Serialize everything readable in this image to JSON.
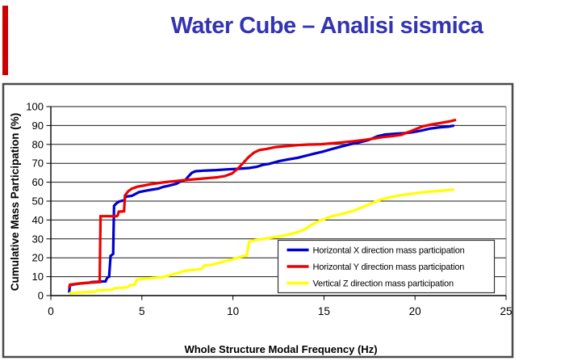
{
  "slide": {
    "title": "Water Cube – Analisi sismica",
    "title_color": "#3333B3",
    "accent_bar_color": "#CC0000"
  },
  "chart_data": {
    "type": "line",
    "title": "",
    "xlabel": "Whole Structure Modal Frequency (Hz)",
    "ylabel": "Cumulative Mass Participation (%)",
    "xlim": [
      0,
      25
    ],
    "ylim": [
      0,
      100
    ],
    "x_ticks": [
      0,
      5,
      10,
      15,
      20,
      25
    ],
    "y_ticks": [
      100,
      90,
      80,
      70,
      60,
      50,
      40,
      30,
      20,
      10,
      0
    ],
    "grid": "horizontal",
    "legend_position": "inside-lower-right",
    "series": [
      {
        "name": "Horizontal X direction mass participation",
        "color": "#0000CC",
        "points": [
          [
            1.0,
            1.5
          ],
          [
            1.05,
            5.5
          ],
          [
            1.5,
            6.3
          ],
          [
            2.1,
            6.8
          ],
          [
            2.25,
            7.2
          ],
          [
            3.0,
            7.5
          ],
          [
            3.1,
            9.5
          ],
          [
            3.2,
            10
          ],
          [
            3.28,
            21
          ],
          [
            3.42,
            22
          ],
          [
            3.47,
            47.5
          ],
          [
            3.6,
            48.8
          ],
          [
            3.75,
            49.8
          ],
          [
            4.05,
            50.5
          ],
          [
            4.1,
            52.3
          ],
          [
            4.45,
            52.8
          ],
          [
            4.85,
            54.8
          ],
          [
            5.15,
            55.4
          ],
          [
            5.5,
            56
          ],
          [
            5.9,
            56.6
          ],
          [
            6.15,
            57.5
          ],
          [
            6.5,
            58.2
          ],
          [
            6.9,
            59.2
          ],
          [
            7.15,
            60.6
          ],
          [
            7.4,
            61.2
          ],
          [
            7.55,
            63
          ],
          [
            7.75,
            65
          ],
          [
            7.95,
            65.8
          ],
          [
            8.4,
            66.1
          ],
          [
            9.1,
            66.4
          ],
          [
            9.7,
            66.8
          ],
          [
            10.3,
            67.1
          ],
          [
            10.9,
            67.5
          ],
          [
            11.3,
            68.1
          ],
          [
            11.65,
            69.2
          ],
          [
            11.95,
            69.6
          ],
          [
            12.25,
            70.4
          ],
          [
            12.55,
            71.2
          ],
          [
            13.0,
            72
          ],
          [
            13.55,
            72.9
          ],
          [
            14.05,
            74.1
          ],
          [
            14.45,
            75.1
          ],
          [
            14.95,
            76.2
          ],
          [
            15.45,
            77.6
          ],
          [
            15.95,
            78.9
          ],
          [
            16.45,
            80.1
          ],
          [
            16.95,
            81.1
          ],
          [
            17.45,
            82.3
          ],
          [
            17.95,
            84.3
          ],
          [
            18.35,
            85.2
          ],
          [
            18.85,
            85.6
          ],
          [
            19.35,
            85.9
          ],
          [
            19.85,
            86.4
          ],
          [
            20.35,
            87.3
          ],
          [
            20.85,
            88.4
          ],
          [
            21.35,
            89
          ],
          [
            21.85,
            89.4
          ],
          [
            22.15,
            90
          ]
        ]
      },
      {
        "name": "Horizontal Y direction mass participation",
        "color": "#EE0000",
        "points": [
          [
            1.0,
            4
          ],
          [
            1.05,
            5.8
          ],
          [
            1.55,
            6.4
          ],
          [
            2.2,
            6.9
          ],
          [
            2.68,
            7.2
          ],
          [
            2.73,
            42
          ],
          [
            3.62,
            42
          ],
          [
            3.68,
            42.6
          ],
          [
            3.73,
            44.4
          ],
          [
            4.02,
            44.6
          ],
          [
            4.07,
            53
          ],
          [
            4.25,
            55.2
          ],
          [
            4.45,
            56.6
          ],
          [
            4.75,
            57.6
          ],
          [
            5.05,
            58.1
          ],
          [
            5.45,
            58.9
          ],
          [
            5.95,
            59.6
          ],
          [
            6.35,
            60.1
          ],
          [
            6.85,
            60.6
          ],
          [
            7.35,
            61.1
          ],
          [
            7.95,
            61.6
          ],
          [
            8.55,
            62.1
          ],
          [
            9.15,
            62.6
          ],
          [
            9.55,
            63.2
          ],
          [
            9.95,
            64.6
          ],
          [
            10.25,
            67
          ],
          [
            10.55,
            70
          ],
          [
            10.85,
            73.2
          ],
          [
            11.15,
            75.6
          ],
          [
            11.45,
            77
          ],
          [
            11.85,
            77.6
          ],
          [
            12.35,
            78.6
          ],
          [
            12.95,
            79.1
          ],
          [
            13.55,
            79.6
          ],
          [
            14.15,
            79.9
          ],
          [
            14.85,
            80.1
          ],
          [
            15.45,
            80.6
          ],
          [
            16.05,
            81.1
          ],
          [
            16.65,
            81.7
          ],
          [
            17.25,
            82.4
          ],
          [
            17.75,
            83.1
          ],
          [
            18.25,
            83.9
          ],
          [
            18.75,
            84.4
          ],
          [
            19.25,
            85.1
          ],
          [
            19.65,
            86.6
          ],
          [
            20.05,
            88.1
          ],
          [
            20.45,
            89.6
          ],
          [
            20.95,
            90.6
          ],
          [
            21.45,
            91.4
          ],
          [
            21.85,
            92.1
          ],
          [
            22.25,
            93
          ]
        ]
      },
      {
        "name": "Vertical Z direction mass participation",
        "color": "#FFFF00",
        "points": [
          [
            1.0,
            1.3
          ],
          [
            1.9,
            1.8
          ],
          [
            2.45,
            2.1
          ],
          [
            2.55,
            2.7
          ],
          [
            3.35,
            3.1
          ],
          [
            3.5,
            3.9
          ],
          [
            4.2,
            4.4
          ],
          [
            4.35,
            5.4
          ],
          [
            4.6,
            5.9
          ],
          [
            4.72,
            8.4
          ],
          [
            5.1,
            8.9
          ],
          [
            5.6,
            9.3
          ],
          [
            6.1,
            9.7
          ],
          [
            6.35,
            10.3
          ],
          [
            6.65,
            11.1
          ],
          [
            7.05,
            12.1
          ],
          [
            7.35,
            13.1
          ],
          [
            7.85,
            13.6
          ],
          [
            8.25,
            14.1
          ],
          [
            8.45,
            15.9
          ],
          [
            8.9,
            16.4
          ],
          [
            9.25,
            17.4
          ],
          [
            9.65,
            18.4
          ],
          [
            10.05,
            19.4
          ],
          [
            10.35,
            20.4
          ],
          [
            10.75,
            21.1
          ],
          [
            10.9,
            28.6
          ],
          [
            11.25,
            29.4
          ],
          [
            11.75,
            30.1
          ],
          [
            12.25,
            30.9
          ],
          [
            12.75,
            31.6
          ],
          [
            13.15,
            32.6
          ],
          [
            13.55,
            33.6
          ],
          [
            13.95,
            35.1
          ],
          [
            14.25,
            37.1
          ],
          [
            14.65,
            39.1
          ],
          [
            15.05,
            40.6
          ],
          [
            15.45,
            42.1
          ],
          [
            15.95,
            43.1
          ],
          [
            16.55,
            44.6
          ],
          [
            17.05,
            46.6
          ],
          [
            17.55,
            48.6
          ],
          [
            18.05,
            50.6
          ],
          [
            18.65,
            52.1
          ],
          [
            19.25,
            53.1
          ],
          [
            19.95,
            54.1
          ],
          [
            20.65,
            54.9
          ],
          [
            21.35,
            55.4
          ],
          [
            22.15,
            56.1
          ]
        ]
      }
    ]
  }
}
